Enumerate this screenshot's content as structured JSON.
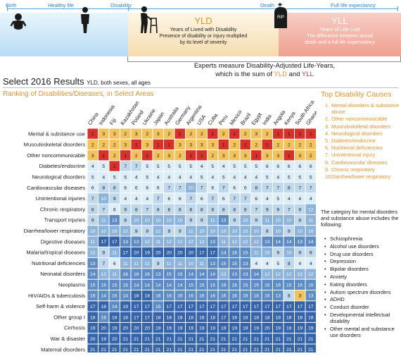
{
  "timeline": {
    "labels": [
      "Birth",
      "Healthy life",
      "Disability",
      "Death",
      "Full life expectancy"
    ],
    "rip": "RIP",
    "yld_title": "YLD",
    "yld_subtitle": "Years of Lived with Disability",
    "yld_desc_1": "Presence of disability or injury multiplied",
    "yld_desc_2": "by its level of severity",
    "yll_title": "YLL",
    "yll_subtitle": "Years of Life Lost",
    "yll_desc_1": "The difference between actual",
    "yll_desc_2": "death and a full life expenctancy",
    "daly_line_1": "Experts measure Disability-Adjusted Life-Years,",
    "daly_line_2a": "which is the sum of ",
    "daly_yld": "YLD",
    "daly_and": " and ",
    "daly_yll": "YLL"
  },
  "header": {
    "select_title": "Select 2016 Results",
    "select_sub": "YLD, both sexes, all ages",
    "ranking_title": "Ranking of Disabilities/Diseases, in Select Areas",
    "top_title": "Top Disability Causes"
  },
  "colors": {
    "rank1": "#d8302b",
    "rank2_3": "#f2c35c",
    "rank4_6": "#ddeef8",
    "rank7_9": "#c0d8ec",
    "rank10_12": "#8cb3d9",
    "rank13_16": "#5d8cc4",
    "rank17_21": "#3564a8",
    "accent_orange": "#e3922b"
  },
  "chart_data": {
    "type": "heatmap",
    "title": "Ranking of Disabilities/Diseases, in Select Areas",
    "columns": [
      "China",
      "Indonesia",
      "Fiji",
      "Kazakhstan",
      "Poland",
      "Ukraine",
      "Japan",
      "Australia",
      "Germany",
      "Argentina",
      "USA",
      "Cuba",
      "Peru",
      "Mexico",
      "Brazil",
      "Egypt",
      "India",
      "Angola",
      "Kenya",
      "South Africa",
      "Ghana"
    ],
    "rows": [
      {
        "label": "Mental & substance use",
        "values": [
          1,
          3,
          3,
          2,
          3,
          2,
          3,
          2,
          1,
          2,
          2,
          1,
          2,
          1,
          2,
          3,
          2,
          1,
          1,
          1,
          1
        ]
      },
      {
        "label": "Musculoskeletal disorders",
        "values": [
          2,
          2,
          2,
          3,
          1,
          3,
          1,
          1,
          3,
          3,
          3,
          3,
          1,
          2,
          1,
          2,
          1,
          2,
          2,
          2,
          2
        ]
      },
      {
        "label": "Other noncommunicable",
        "values": [
          3,
          1,
          2,
          1,
          2,
          1,
          2,
          3,
          2,
          1,
          1,
          2,
          3,
          3,
          3,
          1,
          3,
          3,
          1,
          3,
          2
        ]
      },
      {
        "label": "Diabetes/endocrine",
        "values": [
          4,
          5,
          1,
          7,
          7,
          5,
          5,
          5,
          5,
          5,
          4,
          5,
          4,
          5,
          5,
          5,
          6,
          6,
          6,
          6,
          6
        ]
      },
      {
        "label": "Neurological disorders",
        "values": [
          5,
          4,
          5,
          5,
          4,
          5,
          4,
          4,
          4,
          4,
          5,
          4,
          5,
          4,
          4,
          4,
          5,
          4,
          5,
          5,
          5
        ]
      },
      {
        "label": "Cardiovascular diseases",
        "values": [
          6,
          8,
          8,
          6,
          6,
          6,
          6,
          7,
          7,
          10,
          7,
          6,
          7,
          6,
          6,
          8,
          7,
          7,
          8,
          7,
          7
        ]
      },
      {
        "label": "Unintentional injuries",
        "values": [
          7,
          10,
          9,
          4,
          4,
          4,
          7,
          6,
          6,
          7,
          6,
          7,
          6,
          7,
          7,
          6,
          4,
          5,
          4,
          4,
          4
        ]
      },
      {
        "label": "Chronic respiratory",
        "values": [
          8,
          7,
          6,
          9,
          8,
          7,
          8,
          8,
          8,
          8,
          8,
          8,
          8,
          8,
          8,
          7,
          9,
          9,
          7,
          9,
          12
        ]
      },
      {
        "label": "Transport injuries",
        "values": [
          9,
          11,
          13,
          8,
          10,
          10,
          10,
          10,
          10,
          9,
          9,
          11,
          13,
          9,
          10,
          9,
          11,
          10,
          10,
          8,
          11
        ]
      },
      {
        "label": "Diarrhea/lower respiratory",
        "values": [
          10,
          10,
          10,
          12,
          9,
          9,
          12,
          9,
          9,
          11,
          10,
          10,
          10,
          10,
          10,
          10,
          8,
          10,
          9,
          10,
          10
        ]
      },
      {
        "label": "Digestive diseases",
        "values": [
          11,
          17,
          17,
          13,
          13,
          12,
          11,
          12,
          12,
          12,
          12,
          13,
          11,
          12,
          12,
          12,
          13,
          14,
          14,
          13,
          14
        ]
      },
      {
        "label": "Malaria/tropical diseases",
        "values": [
          12,
          9,
          11,
          17,
          20,
          19,
          20,
          20,
          20,
          20,
          17,
          17,
          14,
          16,
          15,
          11,
          10,
          9,
          10,
          9,
          9
        ]
      },
      {
        "label": "Nutritional deficiencies",
        "values": [
          13,
          7,
          6,
          11,
          11,
          11,
          9,
          11,
          11,
          10,
          11,
          13,
          15,
          15,
          13,
          4,
          4,
          5,
          8,
          4,
          4
        ]
      },
      {
        "label": "Neonatal disorders",
        "values": [
          14,
          12,
          11,
          16,
          16,
          16,
          13,
          15,
          15,
          14,
          14,
          14,
          12,
          13,
          13,
          14,
          12,
          12,
          12,
          12,
          12
        ]
      },
      {
        "label": "Neoplasms",
        "values": [
          15,
          15,
          15,
          15,
          14,
          14,
          14,
          14,
          14,
          15,
          15,
          15,
          16,
          16,
          15,
          15,
          15,
          16,
          15,
          15,
          15
        ]
      },
      {
        "label": "HIV/AIDs & tuberculosis",
        "values": [
          16,
          14,
          16,
          14,
          18,
          18,
          16,
          16,
          16,
          16,
          16,
          16,
          16,
          16,
          16,
          16,
          15,
          13,
          8,
          3,
          13
        ]
      },
      {
        "label": "Self-harm & violence",
        "values": [
          17,
          18,
          14,
          19,
          17,
          17,
          15,
          17,
          17,
          17,
          17,
          17,
          17,
          17,
          17,
          17,
          17,
          17,
          17,
          17,
          17
        ]
      },
      {
        "label": "Other group I",
        "values": [
          18,
          16,
          18,
          18,
          17,
          17,
          18,
          18,
          18,
          18,
          18,
          18,
          17,
          18,
          18,
          18,
          18,
          18,
          18,
          18,
          18
        ]
      },
      {
        "label": "Cirrhosis",
        "values": [
          19,
          20,
          19,
          20,
          20,
          20,
          19,
          19,
          19,
          19,
          19,
          19,
          19,
          19,
          19,
          19,
          20,
          19,
          19,
          19,
          19
        ]
      },
      {
        "label": "War & disaster",
        "values": [
          20,
          19,
          20,
          21,
          21,
          21,
          21,
          21,
          21,
          21,
          21,
          21,
          21,
          21,
          21,
          21,
          21,
          21,
          21,
          21,
          21
        ]
      },
      {
        "label": "Maternal disorders",
        "values": [
          21,
          21,
          21,
          21,
          21,
          21,
          21,
          21,
          21,
          21,
          21,
          21,
          21,
          21,
          21,
          21,
          21,
          21,
          21,
          21,
          21
        ]
      }
    ]
  },
  "top_causes": [
    "Mental disorders & substance abuse",
    "Other noncommunicable",
    "Musculoskeletal disorders",
    "Neurological disorders",
    "Diabetes/endocrine",
    "Nutritional deficiencies",
    "Unintentional injury",
    "Cardiovascular diseases",
    "Chronic respiratory",
    "Diarrhea/lower respiratory"
  ],
  "note": "The category for mental disorders and substance abuse includes the following:",
  "disorders": [
    "Schizophrenia",
    "Alcohol use disorders",
    "Drug use disorders",
    "Depression",
    "Bipolar disorders",
    "Anxiety",
    "Eating disorders",
    "Autism spectrum disorders",
    "ADHD",
    "Conduct disorder",
    "Developmental intellectual disability",
    "Other mental and substance use disorders"
  ]
}
